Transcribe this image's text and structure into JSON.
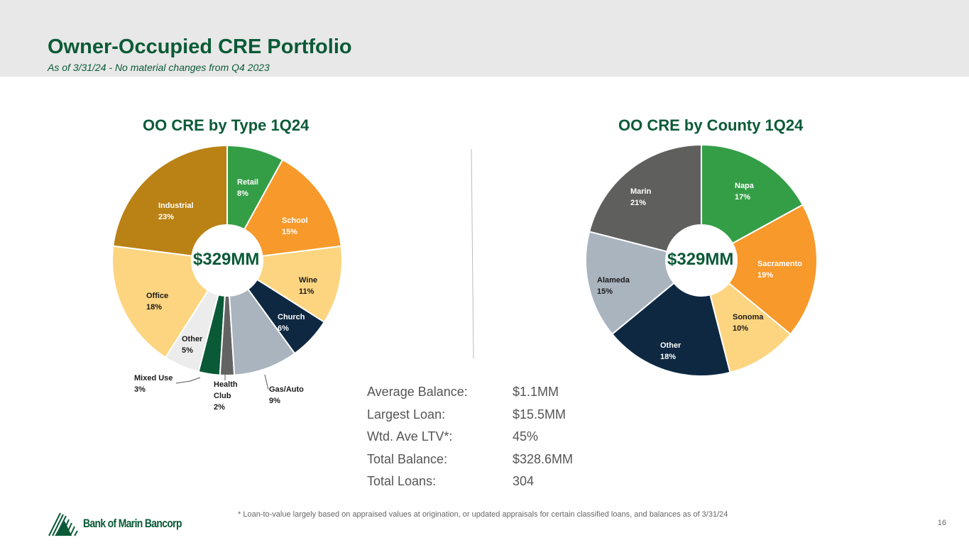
{
  "header": {
    "title": "Owner-Occupied CRE Portfolio",
    "subtitle": "As of 3/31/24 - No material changes from Q4 2023"
  },
  "chart_data": [
    {
      "type": "pie",
      "title": "OO CRE by Type 1Q24",
      "center_label": "$329MM",
      "categories": [
        "Retail",
        "School",
        "Wine",
        "Church",
        "Gas/Auto",
        "Health Club",
        "Mixed Use",
        "Other",
        "Office",
        "Industrial"
      ],
      "values": [
        8,
        15,
        11,
        6,
        9,
        2,
        3,
        5,
        18,
        23
      ],
      "labels": [
        "8%",
        "15%",
        "11%",
        "6%",
        "9%",
        "2%",
        "3%",
        "5%",
        "18%",
        "23%"
      ],
      "colors": [
        "#349e47",
        "#f7992b",
        "#fdd580",
        "#0e2841",
        "#a9b4bf",
        "#636363",
        "#0b5a37",
        "#ececec",
        "#fdd580",
        "#ba8115"
      ]
    },
    {
      "type": "pie",
      "title": "OO CRE by County 1Q24",
      "center_label": "$329MM",
      "categories": [
        "Napa",
        "Sacramento",
        "Sonoma",
        "Other",
        "Alameda",
        "Marin"
      ],
      "values": [
        17,
        19,
        10,
        18,
        15,
        21
      ],
      "labels": [
        "17%",
        "19%",
        "10%",
        "18%",
        "15%",
        "21%"
      ],
      "colors": [
        "#349e47",
        "#f7992b",
        "#fdd580",
        "#0e2841",
        "#a9b4bf",
        "#5f605e"
      ]
    }
  ],
  "stats": [
    {
      "k": "Average Balance:",
      "v": "$1.1MM"
    },
    {
      "k": "Largest Loan:",
      "v": "$15.5MM"
    },
    {
      "k": "Wtd. Ave LTV*:",
      "v": "45%"
    },
    {
      "k": "Total Balance:",
      "v": "$328.6MM"
    },
    {
      "k": "Total Loans:",
      "v": "304"
    }
  ],
  "footnote": "*  Loan-to-value largely based on appraised values at origination, or updated appraisals for certain classified loans, and balances as of 3/31/24",
  "page_number": "16",
  "logo_text": "Bank of Marin Bancorp"
}
